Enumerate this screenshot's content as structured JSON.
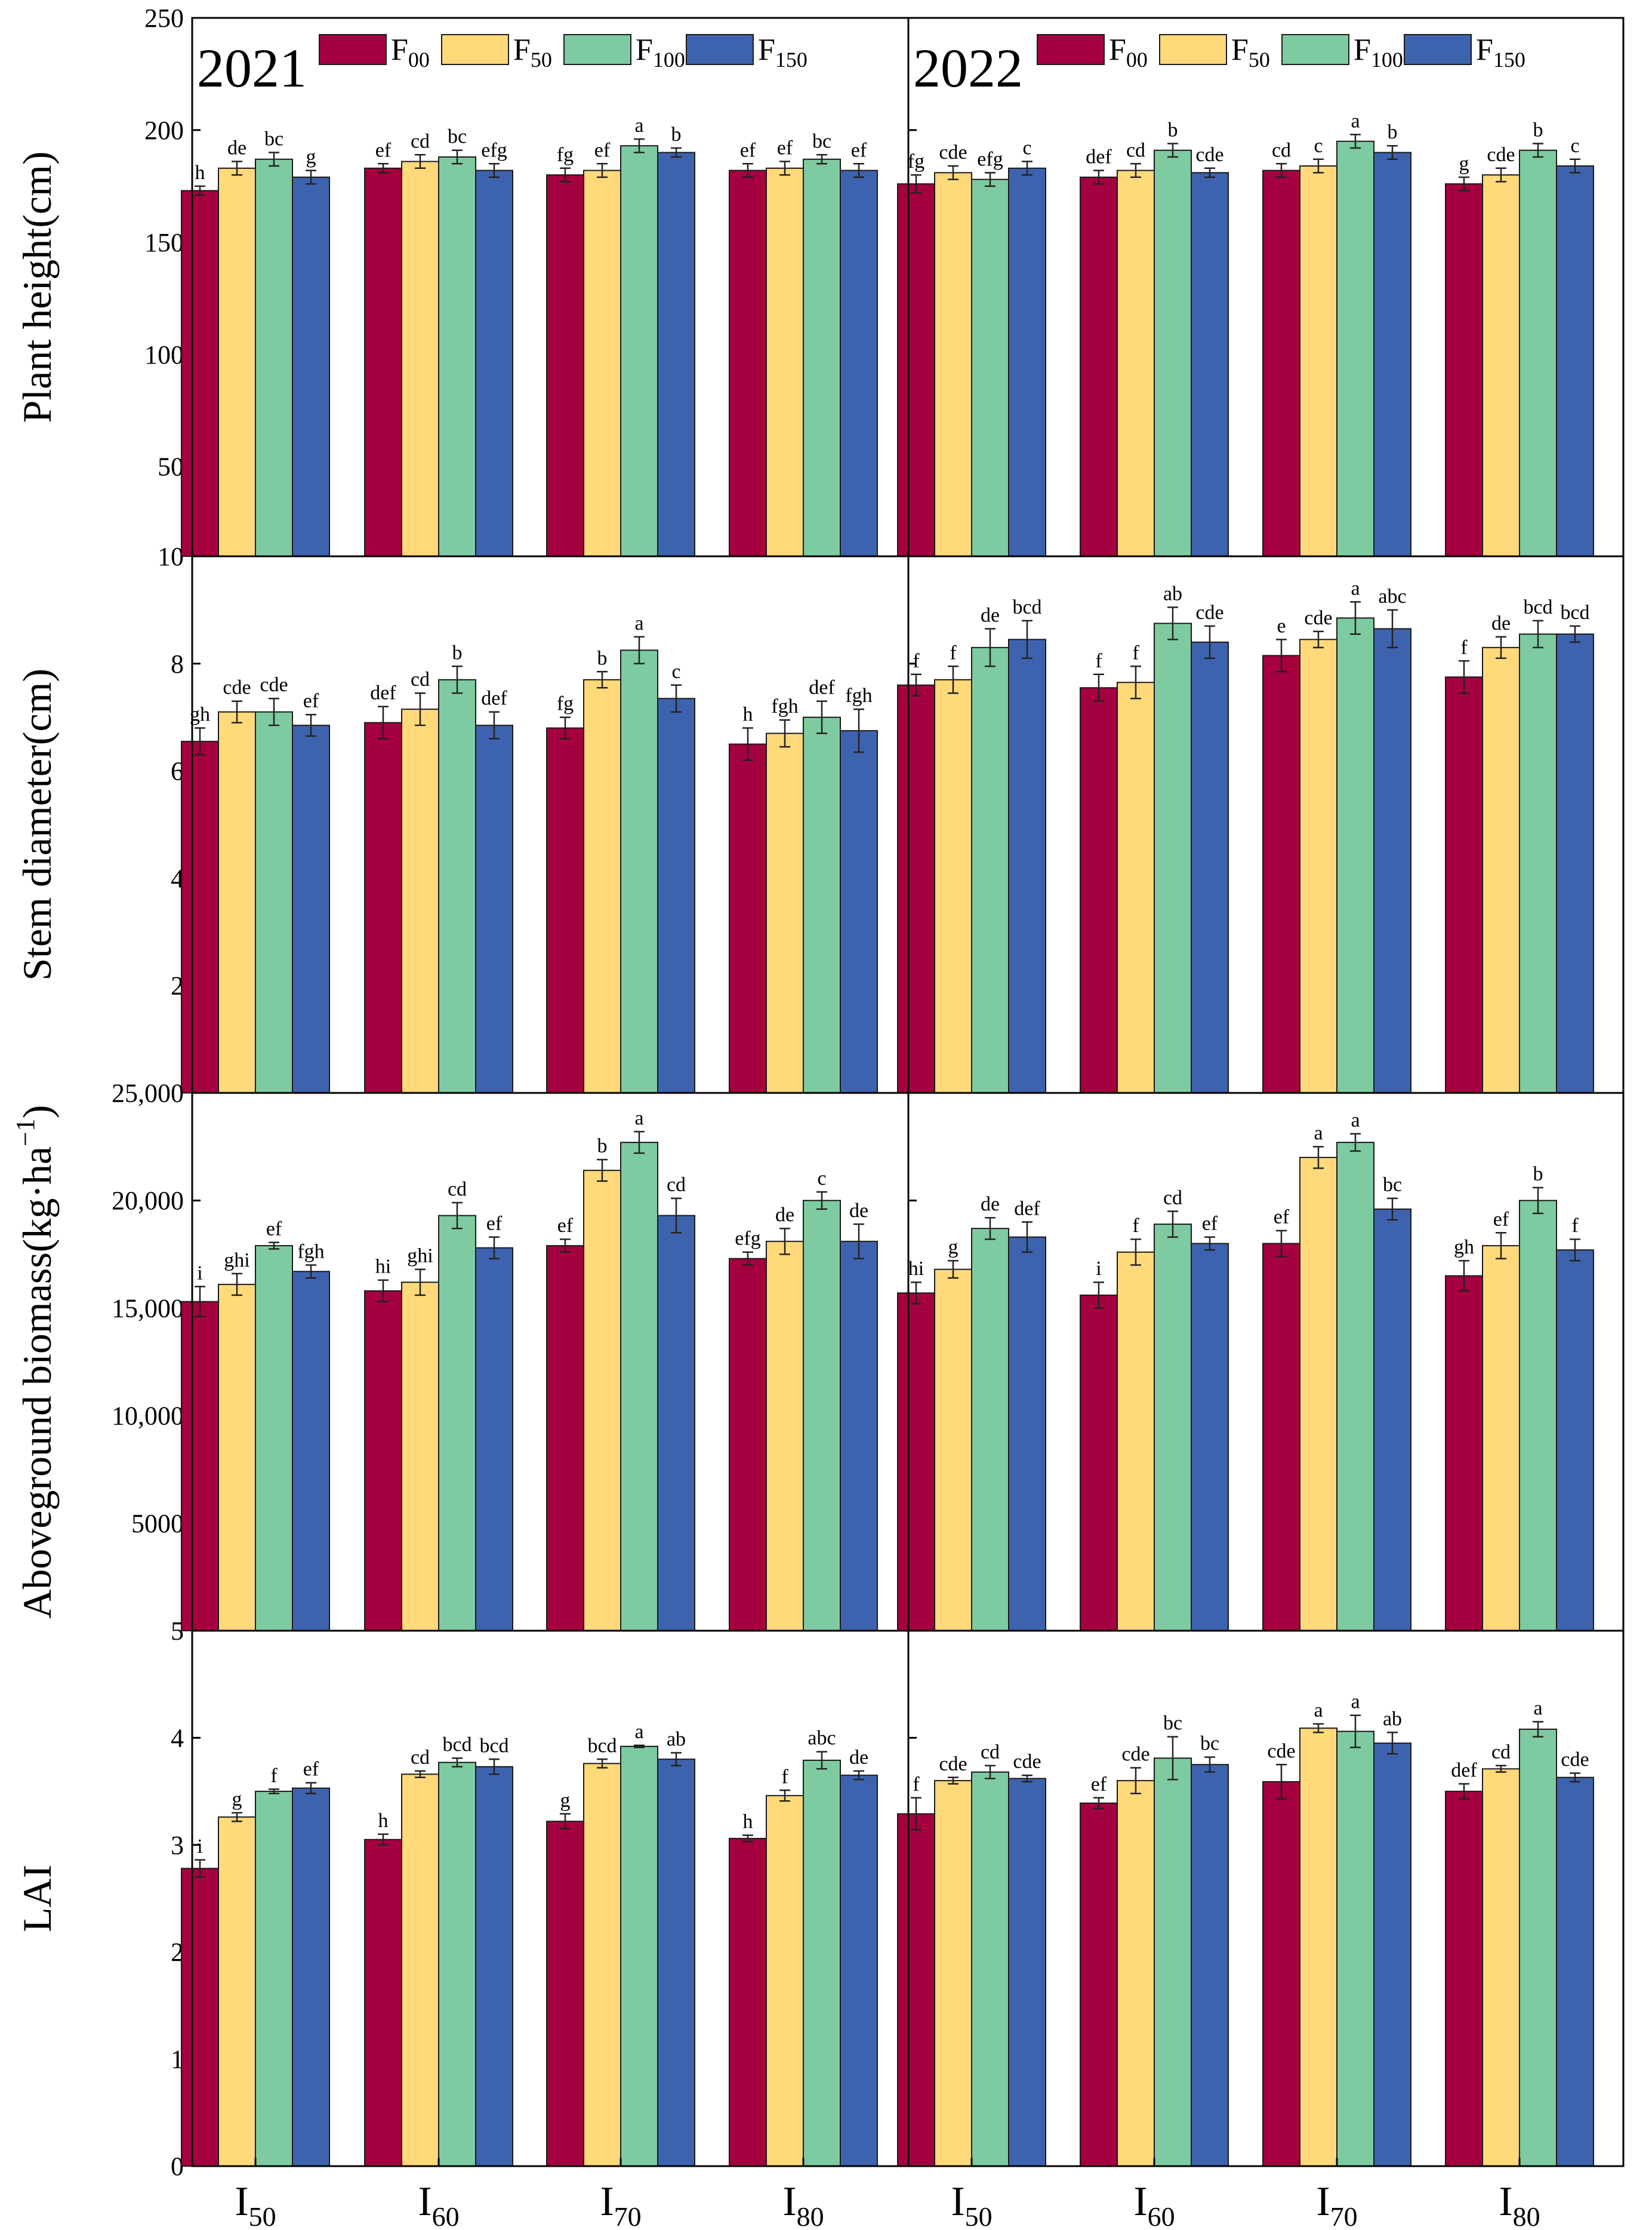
{
  "chart_data": {
    "type": "bar",
    "years": [
      "2021",
      "2022"
    ],
    "irrigation": [
      "I",
      "50",
      "60",
      "70",
      "80"
    ],
    "categories": [
      "I50",
      "I60",
      "I70",
      "I80"
    ],
    "category_subscripts": [
      "50",
      "60",
      "70",
      "80"
    ],
    "legend": [
      {
        "base": "F",
        "sub": "00",
        "color": "#A50040"
      },
      {
        "base": "F",
        "sub": "50",
        "color": "#FFD97A"
      },
      {
        "base": "F",
        "sub": "100",
        "color": "#7ECBA1"
      },
      {
        "base": "F",
        "sub": "150",
        "color": "#3E63AE"
      }
    ],
    "panels": [
      {
        "id": "plant-height",
        "ylabel": "Plant height(cm)",
        "ylim": [
          10,
          250
        ],
        "ticks": [
          10,
          50,
          100,
          150,
          200,
          250
        ],
        "tick_labels": [
          "10",
          "50",
          "100",
          "150",
          "200",
          "250"
        ],
        "data": {
          "2021": [
            [
              [
                173,
                2,
                "h"
              ],
              [
                183,
                3,
                "de"
              ],
              [
                187,
                3,
                "bc"
              ],
              [
                179,
                3,
                "g"
              ]
            ],
            [
              [
                183,
                2,
                "ef"
              ],
              [
                186,
                3,
                "cd"
              ],
              [
                188,
                3,
                "bc"
              ],
              [
                182,
                3,
                "efg"
              ]
            ],
            [
              [
                180,
                3,
                "fg"
              ],
              [
                182,
                3,
                "ef"
              ],
              [
                193,
                3,
                "a"
              ],
              [
                190,
                2,
                "b"
              ]
            ],
            [
              [
                182,
                3,
                "ef"
              ],
              [
                183,
                3,
                "ef"
              ],
              [
                187,
                2,
                "bc"
              ],
              [
                182,
                3,
                "ef"
              ]
            ]
          ],
          "2022": [
            [
              [
                176,
                4,
                "fg"
              ],
              [
                181,
                3,
                "cde"
              ],
              [
                178,
                3,
                "efg"
              ],
              [
                183,
                3,
                "c"
              ]
            ],
            [
              [
                179,
                3,
                "def"
              ],
              [
                182,
                3,
                "cd"
              ],
              [
                191,
                3,
                "b"
              ],
              [
                181,
                2,
                "cde"
              ]
            ],
            [
              [
                182,
                3,
                "cd"
              ],
              [
                184,
                3,
                "c"
              ],
              [
                195,
                3,
                "a"
              ],
              [
                190,
                3,
                "b"
              ]
            ],
            [
              [
                176,
                3,
                "g"
              ],
              [
                180,
                3,
                "cde"
              ],
              [
                191,
                3,
                "b"
              ],
              [
                184,
                3,
                "c"
              ]
            ]
          ]
        }
      },
      {
        "id": "stem-diameter",
        "ylabel": "Stem diameter(cm)",
        "ylim": [
          0,
          10
        ],
        "ticks": [
          2,
          4,
          6,
          8
        ],
        "tick_labels": [
          "2",
          "4",
          "6",
          "8"
        ],
        "data": {
          "2021": [
            [
              [
                6.55,
                0.25,
                "gh"
              ],
              [
                7.1,
                0.2,
                "cde"
              ],
              [
                7.1,
                0.25,
                "cde"
              ],
              [
                6.85,
                0.2,
                "ef"
              ]
            ],
            [
              [
                6.9,
                0.3,
                "def"
              ],
              [
                7.15,
                0.3,
                "cd"
              ],
              [
                7.7,
                0.25,
                "b"
              ],
              [
                6.85,
                0.25,
                "def"
              ]
            ],
            [
              [
                6.8,
                0.2,
                "fg"
              ],
              [
                7.7,
                0.15,
                "b"
              ],
              [
                8.25,
                0.25,
                "a"
              ],
              [
                7.35,
                0.25,
                "c"
              ]
            ],
            [
              [
                6.5,
                0.3,
                "h"
              ],
              [
                6.7,
                0.25,
                "fgh"
              ],
              [
                7.0,
                0.3,
                "def"
              ],
              [
                6.75,
                0.4,
                "fgh"
              ]
            ]
          ],
          "2022": [
            [
              [
                7.6,
                0.2,
                "f"
              ],
              [
                7.7,
                0.25,
                "f"
              ],
              [
                8.3,
                0.35,
                "de"
              ],
              [
                8.45,
                0.35,
                "bcd"
              ]
            ],
            [
              [
                7.55,
                0.25,
                "f"
              ],
              [
                7.65,
                0.3,
                "f"
              ],
              [
                8.75,
                0.3,
                "ab"
              ],
              [
                8.4,
                0.3,
                "cde"
              ]
            ],
            [
              [
                8.15,
                0.3,
                "e"
              ],
              [
                8.45,
                0.15,
                "cde"
              ],
              [
                8.85,
                0.3,
                "a"
              ],
              [
                8.65,
                0.35,
                "abc"
              ]
            ],
            [
              [
                7.75,
                0.3,
                "f"
              ],
              [
                8.3,
                0.2,
                "de"
              ],
              [
                8.55,
                0.25,
                "bcd"
              ],
              [
                8.55,
                0.15,
                "bcd"
              ]
            ]
          ]
        }
      },
      {
        "id": "aboveground-biomass",
        "ylabel": "Aboveground biomass(kg·ha",
        "ylabel_sup": "−1",
        "ylabel_close": ")",
        "ylim": [
          5,
          25000
        ],
        "ticks": [
          5,
          5000,
          10000,
          15000,
          20000,
          25000
        ],
        "tick_labels": [
          "5",
          "5000",
          "10,000",
          "15,000",
          "20,000",
          "25,000"
        ],
        "data": {
          "2021": [
            [
              [
                15300,
                700,
                "i"
              ],
              [
                16100,
                500,
                "ghi"
              ],
              [
                17900,
                150,
                "ef"
              ],
              [
                16700,
                300,
                "fgh"
              ]
            ],
            [
              [
                15800,
                500,
                "hi"
              ],
              [
                16200,
                600,
                "ghi"
              ],
              [
                19300,
                600,
                "cd"
              ],
              [
                17800,
                500,
                "ef"
              ]
            ],
            [
              [
                17900,
                300,
                "ef"
              ],
              [
                21400,
                500,
                "b"
              ],
              [
                22700,
                500,
                "a"
              ],
              [
                19300,
                800,
                "cd"
              ]
            ],
            [
              [
                17300,
                300,
                "efg"
              ],
              [
                18100,
                600,
                "de"
              ],
              [
                20000,
                400,
                "c"
              ],
              [
                18100,
                800,
                "de"
              ]
            ]
          ],
          "2022": [
            [
              [
                15700,
                500,
                "hi"
              ],
              [
                16800,
                400,
                "g"
              ],
              [
                18700,
                500,
                "de"
              ],
              [
                18300,
                700,
                "def"
              ]
            ],
            [
              [
                15600,
                600,
                "i"
              ],
              [
                17600,
                600,
                "f"
              ],
              [
                18900,
                600,
                "cd"
              ],
              [
                18000,
                300,
                "ef"
              ]
            ],
            [
              [
                18000,
                600,
                "ef"
              ],
              [
                22000,
                500,
                "a"
              ],
              [
                22700,
                400,
                "a"
              ],
              [
                19600,
                500,
                "bc"
              ]
            ],
            [
              [
                16500,
                700,
                "gh"
              ],
              [
                17900,
                600,
                "ef"
              ],
              [
                20000,
                600,
                "b"
              ],
              [
                17700,
                500,
                "f"
              ]
            ]
          ]
        }
      },
      {
        "id": "lai",
        "ylabel": "LAI",
        "ylim": [
          0,
          5
        ],
        "ticks": [
          0,
          1,
          2,
          3,
          4
        ],
        "tick_labels": [
          "0",
          "1",
          "2",
          "3",
          "4"
        ],
        "data": {
          "2021": [
            [
              [
                2.78,
                0.08,
                "i"
              ],
              [
                3.26,
                0.04,
                "g"
              ],
              [
                3.5,
                0.02,
                "f"
              ],
              [
                3.53,
                0.05,
                "ef"
              ]
            ],
            [
              [
                3.05,
                0.05,
                "h"
              ],
              [
                3.66,
                0.03,
                "cd"
              ],
              [
                3.77,
                0.04,
                "bcd"
              ],
              [
                3.73,
                0.07,
                "bcd"
              ]
            ],
            [
              [
                3.22,
                0.07,
                "g"
              ],
              [
                3.76,
                0.04,
                "bcd"
              ],
              [
                3.92,
                0.01,
                "a"
              ],
              [
                3.8,
                0.06,
                "ab"
              ]
            ],
            [
              [
                3.06,
                0.03,
                "h"
              ],
              [
                3.46,
                0.05,
                "f"
              ],
              [
                3.79,
                0.08,
                "abc"
              ],
              [
                3.65,
                0.04,
                "de"
              ]
            ]
          ],
          "2022": [
            [
              [
                3.29,
                0.15,
                "f"
              ],
              [
                3.6,
                0.03,
                "cde"
              ],
              [
                3.68,
                0.06,
                "cd"
              ],
              [
                3.62,
                0.03,
                "cde"
              ]
            ],
            [
              [
                3.39,
                0.05,
                "ef"
              ],
              [
                3.6,
                0.12,
                "cde"
              ],
              [
                3.81,
                0.2,
                "bc"
              ],
              [
                3.75,
                0.07,
                "bc"
              ]
            ],
            [
              [
                3.59,
                0.16,
                "cde"
              ],
              [
                4.09,
                0.04,
                "a"
              ],
              [
                4.06,
                0.15,
                "a"
              ],
              [
                3.95,
                0.1,
                "ab"
              ]
            ],
            [
              [
                3.5,
                0.07,
                "def"
              ],
              [
                3.71,
                0.03,
                "cd"
              ],
              [
                4.08,
                0.07,
                "a"
              ],
              [
                3.63,
                0.04,
                "cde"
              ]
            ]
          ]
        }
      }
    ]
  }
}
